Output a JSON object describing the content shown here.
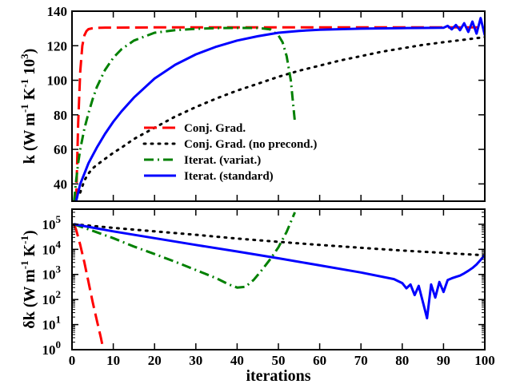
{
  "chart_data": [
    {
      "type": "line",
      "ylabel": {
        "main": "k (W m",
        "sup1": "-1",
        "mid": " K",
        "sup2": "-1",
        "mid2": " 10",
        "sup3": "3",
        "end": ")"
      },
      "xlim": [
        0,
        100
      ],
      "ylim": [
        30,
        140
      ],
      "yticks": [
        40,
        60,
        80,
        100,
        120,
        140
      ],
      "grid": false,
      "legend_position": "bottom-center",
      "series": [
        {
          "name": "Conj. Grad.",
          "color": "#ff0000",
          "dash": "long-dash",
          "x": [
            1,
            1.5,
            2,
            2.5,
            3,
            3.5,
            4,
            5,
            6,
            7,
            8,
            10,
            20,
            40,
            60,
            80,
            100
          ],
          "y": [
            30,
            75,
            105,
            120,
            126,
            128.5,
            129.6,
            130.1,
            130.3,
            130.4,
            130.5,
            130.5,
            130.6,
            130.6,
            130.6,
            130.6,
            130.6
          ]
        },
        {
          "name": "Conj. Grad. (no precond.)",
          "color": "#000000",
          "dash": "dot",
          "x": [
            2,
            3,
            4,
            5,
            6,
            8,
            10,
            12,
            15,
            20,
            25,
            30,
            35,
            40,
            45,
            50,
            55,
            60,
            65,
            70,
            75,
            80,
            85,
            90,
            95,
            100
          ],
          "y": [
            35,
            42,
            46,
            49,
            51,
            54.5,
            58,
            61,
            66,
            72.5,
            79,
            84.5,
            89.5,
            94,
            98,
            102,
            105.5,
            108.5,
            111.5,
            114,
            116.5,
            118.5,
            120.5,
            122,
            123.5,
            125
          ]
        },
        {
          "name": "Iterat. (variat.)",
          "color": "#008000",
          "dash": "dash-dot",
          "x": [
            0.5,
            1,
            1.5,
            2,
            3,
            4,
            5,
            6,
            7,
            8,
            10,
            12,
            15,
            20,
            25,
            30,
            35,
            40,
            45,
            48,
            50,
            51,
            52,
            53,
            54
          ],
          "y": [
            30,
            42,
            52,
            60,
            72,
            81,
            89,
            96,
            101,
            106,
            113,
            118,
            123,
            127.5,
            129,
            129.8,
            130.2,
            130.3,
            130.3,
            129.5,
            126,
            122,
            114,
            100,
            76
          ]
        },
        {
          "name": "Iterat. (standard)",
          "color": "#0000ff",
          "dash": "solid",
          "x": [
            1,
            1.5,
            2,
            3,
            4,
            5,
            6,
            8,
            10,
            12,
            15,
            20,
            25,
            30,
            35,
            40,
            45,
            50,
            55,
            60,
            70,
            80,
            85,
            90,
            91,
            92,
            93,
            94,
            95,
            96,
            97,
            98,
            99,
            100
          ],
          "y": [
            30,
            35,
            40,
            46,
            52,
            56.5,
            61,
            69,
            76,
            82,
            90,
            101,
            109,
            115,
            119.5,
            123,
            125.5,
            127.5,
            128.6,
            129.3,
            129.9,
            130.2,
            130.3,
            130.4,
            131.5,
            129.5,
            132,
            129,
            133,
            128,
            134,
            127,
            136,
            126
          ]
        }
      ]
    },
    {
      "type": "line",
      "yscale": "log",
      "xlabel": "iterations",
      "ylabel": {
        "main": "δk (W m",
        "sup1": "-1",
        "mid": " K",
        "sup2": "-1",
        "end": ")"
      },
      "xlim": [
        0,
        100
      ],
      "ylim": [
        1,
        400000
      ],
      "xticks": [
        0,
        10,
        20,
        30,
        40,
        50,
        60,
        70,
        80,
        90,
        100
      ],
      "yticks": [
        {
          "value": 1,
          "base": "10",
          "exp": "0"
        },
        {
          "value": 10,
          "base": "10",
          "exp": "1"
        },
        {
          "value": 100,
          "base": "10",
          "exp": "2"
        },
        {
          "value": 1000,
          "base": "10",
          "exp": "3"
        },
        {
          "value": 10000,
          "base": "10",
          "exp": "4"
        },
        {
          "value": 100000,
          "base": "10",
          "exp": "5"
        }
      ],
      "grid": false,
      "series": [
        {
          "name": "Conj. Grad.",
          "color": "#ff0000",
          "dash": "long-dash",
          "x": [
            0.5,
            1,
            2,
            3,
            4,
            5,
            6,
            7,
            7.6
          ],
          "y": [
            100000,
            60000,
            15000,
            3000,
            500,
            80,
            15,
            3,
            1
          ]
        },
        {
          "name": "Conj. Grad. (no precond.)",
          "color": "#000000",
          "dash": "dot",
          "x": [
            0.5,
            10,
            20,
            30,
            40,
            50,
            60,
            70,
            80,
            90,
            100
          ],
          "y": [
            100000,
            72000,
            52000,
            38000,
            27000,
            20000,
            15000,
            11500,
            9000,
            7200,
            5800
          ]
        },
        {
          "name": "Iterat. (variat.)",
          "color": "#008000",
          "dash": "dash-dot",
          "x": [
            0.5,
            5,
            10,
            15,
            20,
            25,
            30,
            35,
            38,
            40,
            42,
            44,
            46,
            48,
            50,
            52,
            54
          ],
          "y": [
            100000,
            55000,
            28000,
            13000,
            6500,
            3200,
            1500,
            700,
            400,
            300,
            320,
            600,
            1500,
            4000,
            12000,
            50000,
            300000
          ]
        },
        {
          "name": "Iterat. (standard)",
          "color": "#0000ff",
          "dash": "solid",
          "x": [
            0.5,
            10,
            20,
            30,
            40,
            50,
            60,
            70,
            78,
            80,
            81,
            82,
            83,
            84,
            85,
            86,
            87,
            88,
            89,
            90,
            91,
            92,
            93,
            94,
            95,
            96,
            97,
            98,
            99,
            100
          ],
          "y": [
            100000,
            52000,
            28000,
            15000,
            8200,
            4400,
            2300,
            1200,
            650,
            450,
            280,
            400,
            150,
            350,
            80,
            18,
            400,
            120,
            500,
            200,
            600,
            700,
            800,
            900,
            1100,
            1400,
            1800,
            2500,
            3800,
            6000
          ]
        }
      ]
    }
  ]
}
